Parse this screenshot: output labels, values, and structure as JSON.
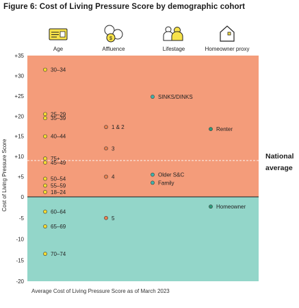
{
  "title": "Figure 6: Cost of Living Pressure Score by demographic cohort",
  "footnote": "Average Cost of Living Pressure Score as of March 2023",
  "national_average": {
    "line1": "National",
    "line2": "average"
  },
  "colors": {
    "above_band": "#f49c7a",
    "below_band": "#93d6c9",
    "age_marker": "#f5dc31",
    "affluence_marker": "#e8804f",
    "lifestage_marker": "#3fb3aa",
    "homeowner_marker": "#2e9a7a",
    "icon_yellow": "#f7e24a"
  },
  "chart_data": {
    "type": "scatter",
    "title": "Figure 6: Cost of Living Pressure Score by demographic cohort",
    "ylabel": "Cost of Living Pressure Score",
    "xlabel": "",
    "ylim": [
      -20,
      35
    ],
    "yticks": [
      "+35",
      "+30",
      "+25",
      "+20",
      "+15",
      "+10",
      "+5",
      "0",
      "-5",
      "-10",
      "-15",
      "-20"
    ],
    "ytick_values": [
      35,
      30,
      25,
      20,
      15,
      10,
      5,
      0,
      -5,
      -10,
      -15,
      -20
    ],
    "national_average": 9,
    "categories": [
      "Age",
      "Affluence",
      "Lifestage",
      "Homeowner proxy"
    ],
    "category_icons": [
      "id-card-icon",
      "coins-icon",
      "family-icon",
      "house-icon"
    ],
    "grid": false,
    "series": [
      {
        "name": "Age",
        "points": [
          {
            "label": "30–34",
            "value": 31.5
          },
          {
            "label": "25–29",
            "value": 20.5
          },
          {
            "label": "35–39",
            "value": 19.5
          },
          {
            "label": "40–44",
            "value": 15.0
          },
          {
            "label": "75+",
            "value": 9.5
          },
          {
            "label": "45–49",
            "value": 8.5
          },
          {
            "label": "50–54",
            "value": 4.5
          },
          {
            "label": "55–59",
            "value": 2.8
          },
          {
            "label": "18–24",
            "value": 1.2
          },
          {
            "label": "60–64",
            "value": -3.5
          },
          {
            "label": "65–69",
            "value": -7.0
          },
          {
            "label": "70–74",
            "value": -13.5
          }
        ]
      },
      {
        "name": "Affluence",
        "points": [
          {
            "label": "1 & 2",
            "value": 17.3
          },
          {
            "label": "3",
            "value": 12.0
          },
          {
            "label": "4",
            "value": 5.0
          },
          {
            "label": "5",
            "value": -5.0
          }
        ]
      },
      {
        "name": "Lifestage",
        "points": [
          {
            "label": "SINKS/DINKS",
            "value": 24.8
          },
          {
            "label": "Older S&C",
            "value": 5.5
          },
          {
            "label": "Family",
            "value": 3.5
          }
        ]
      },
      {
        "name": "Homeowner proxy",
        "points": [
          {
            "label": "Renter",
            "value": 16.8
          },
          {
            "label": "Homeowner",
            "value": -2.3
          }
        ]
      }
    ]
  }
}
